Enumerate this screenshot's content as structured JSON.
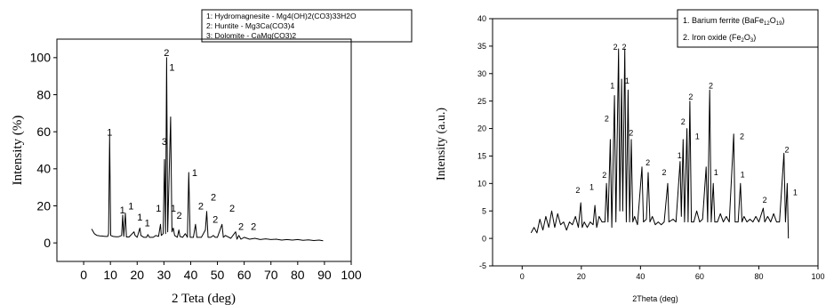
{
  "chart_data": [
    {
      "type": "line",
      "xlabel": "2 Teta (deg)",
      "ylabel": "Intensity (%)",
      "xlim": [
        -10,
        100
      ],
      "ylim": [
        -10,
        110
      ],
      "xticks": [
        0,
        10,
        20,
        30,
        40,
        50,
        60,
        70,
        80,
        90,
        100
      ],
      "yticks": [
        0,
        20,
        40,
        60,
        80,
        100
      ],
      "legend": [
        "1: Hydromagnesite - Mg4(OH)2(CO3)33H2O",
        "2: Huntite - Mg3Ca(CO3)4",
        "3: Dolomite - CaMg(CO3)2"
      ],
      "legend_position": "top-right",
      "grid": false,
      "peak_labels": [
        {
          "x": 9.7,
          "y": 58,
          "label": "1"
        },
        {
          "x": 14.5,
          "y": 16,
          "label": "1"
        },
        {
          "x": 17.7,
          "y": 18,
          "label": "1"
        },
        {
          "x": 21,
          "y": 12,
          "label": "1"
        },
        {
          "x": 23.8,
          "y": 9,
          "label": "1"
        },
        {
          "x": 28,
          "y": 17,
          "label": "1"
        },
        {
          "x": 30.2,
          "y": 53,
          "label": "3"
        },
        {
          "x": 31,
          "y": 101,
          "label": "2"
        },
        {
          "x": 33,
          "y": 93,
          "label": "1"
        },
        {
          "x": 33.5,
          "y": 17,
          "label": "1"
        },
        {
          "x": 35.7,
          "y": 13,
          "label": "2"
        },
        {
          "x": 41.5,
          "y": 36,
          "label": "1"
        },
        {
          "x": 43.8,
          "y": 18,
          "label": "2"
        },
        {
          "x": 48.5,
          "y": 23,
          "label": "2"
        },
        {
          "x": 49.2,
          "y": 11,
          "label": "2"
        },
        {
          "x": 55.5,
          "y": 17,
          "label": "2"
        },
        {
          "x": 58.8,
          "y": 7,
          "label": "2"
        },
        {
          "x": 63.5,
          "y": 7,
          "label": "2"
        }
      ],
      "series": [
        {
          "points": [
            [
              3,
              7.5
            ],
            [
              4,
              5
            ],
            [
              5,
              4
            ],
            [
              6,
              3.8
            ],
            [
              7,
              3.7
            ],
            [
              8,
              3.5
            ],
            [
              9,
              3.5
            ],
            [
              9.3,
              5
            ],
            [
              9.7,
              58
            ],
            [
              10.1,
              4
            ],
            [
              11,
              3.5
            ],
            [
              12,
              3.3
            ],
            [
              13,
              3.3
            ],
            [
              14.2,
              4
            ],
            [
              14.6,
              15
            ],
            [
              15,
              3.5
            ],
            [
              15.6,
              16
            ],
            [
              16,
              3.2
            ],
            [
              17,
              3.2
            ],
            [
              18.8,
              6
            ],
            [
              19.2,
              4
            ],
            [
              20,
              3
            ],
            [
              21,
              8
            ],
            [
              21.4,
              4
            ],
            [
              22.5,
              3
            ],
            [
              23.5,
              3
            ],
            [
              24,
              4.5
            ],
            [
              24.6,
              3
            ],
            [
              26,
              3
            ],
            [
              27,
              4
            ],
            [
              28,
              3.5
            ],
            [
              28.7,
              10
            ],
            [
              29,
              4
            ],
            [
              29.7,
              5
            ],
            [
              30.2,
              45
            ],
            [
              30.6,
              5
            ],
            [
              31,
              100
            ],
            [
              31.4,
              6
            ],
            [
              32.5,
              68
            ],
            [
              33,
              6
            ],
            [
              33.5,
              8
            ],
            [
              34,
              4
            ],
            [
              35,
              3
            ],
            [
              35.6,
              7
            ],
            [
              36,
              3.5
            ],
            [
              37,
              3
            ],
            [
              38,
              5
            ],
            [
              38.8,
              3
            ],
            [
              39.3,
              38
            ],
            [
              39.8,
              3
            ],
            [
              41,
              3
            ],
            [
              41.8,
              10
            ],
            [
              42.3,
              3
            ],
            [
              44,
              3
            ],
            [
              45.5,
              7
            ],
            [
              46,
              17
            ],
            [
              46.5,
              3
            ],
            [
              47.5,
              3
            ],
            [
              48.5,
              4
            ],
            [
              49.2,
              3
            ],
            [
              50,
              3
            ],
            [
              51.7,
              10
            ],
            [
              52.2,
              3
            ],
            [
              53,
              4
            ],
            [
              55,
              2.5
            ],
            [
              56.8,
              6
            ],
            [
              57.3,
              2
            ],
            [
              58,
              4
            ],
            [
              58.8,
              2
            ],
            [
              60,
              3
            ],
            [
              62,
              2
            ],
            [
              64,
              2.5
            ],
            [
              66,
              1.8
            ],
            [
              68,
              2.2
            ],
            [
              70,
              1.8
            ],
            [
              72,
              2
            ],
            [
              74,
              1.5
            ],
            [
              76,
              1.8
            ],
            [
              78,
              1.5
            ],
            [
              80,
              1.8
            ],
            [
              82,
              1.4
            ],
            [
              84,
              1.6
            ],
            [
              86,
              1.3
            ],
            [
              88,
              1.5
            ],
            [
              89.5,
              1.2
            ]
          ]
        }
      ]
    },
    {
      "type": "line",
      "xlabel": "2Theta (deg)",
      "ylabel": "Intensity (a.u.)",
      "xlim": [
        -10,
        100
      ],
      "ylim": [
        -5,
        40
      ],
      "xticks": [
        0,
        20,
        40,
        60,
        80,
        100
      ],
      "yticks": [
        -5,
        0,
        5,
        10,
        15,
        20,
        25,
        30,
        35,
        40
      ],
      "legend": [
        "1. Barium ferrite (BaFe12O19)",
        "2. Iron oxide (Fe2O3)"
      ],
      "legend_position": "top-right",
      "grid": false,
      "peak_labels": [
        {
          "x": 18.8,
          "y": 8.3,
          "label": "2"
        },
        {
          "x": 23.5,
          "y": 8.8,
          "label": "1"
        },
        {
          "x": 27.8,
          "y": 11,
          "label": "2"
        },
        {
          "x": 28.6,
          "y": 21.3,
          "label": "2"
        },
        {
          "x": 30.5,
          "y": 27.3,
          "label": "1"
        },
        {
          "x": 31.5,
          "y": 34.3,
          "label": "2"
        },
        {
          "x": 34.5,
          "y": 34.3,
          "label": "2"
        },
        {
          "x": 35.5,
          "y": 28.2,
          "label": "1"
        },
        {
          "x": 36.8,
          "y": 18.7,
          "label": "2"
        },
        {
          "x": 42.5,
          "y": 13.3,
          "label": "2"
        },
        {
          "x": 48,
          "y": 11.5,
          "label": "2"
        },
        {
          "x": 53.2,
          "y": 14.6,
          "label": "1"
        },
        {
          "x": 54.4,
          "y": 20.7,
          "label": "2"
        },
        {
          "x": 57,
          "y": 25.3,
          "label": "2"
        },
        {
          "x": 59.2,
          "y": 18.1,
          "label": "1"
        },
        {
          "x": 63.8,
          "y": 27.3,
          "label": "2"
        },
        {
          "x": 65.5,
          "y": 11.5,
          "label": "1"
        },
        {
          "x": 74.3,
          "y": 18.1,
          "label": "2"
        },
        {
          "x": 74.5,
          "y": 11.1,
          "label": "1"
        },
        {
          "x": 82,
          "y": 6.5,
          "label": "2"
        },
        {
          "x": 89.5,
          "y": 15.6,
          "label": "2"
        },
        {
          "x": 92.3,
          "y": 7.9,
          "label": "1"
        }
      ],
      "series": [
        {
          "points": [
            [
              3,
              1
            ],
            [
              4,
              2
            ],
            [
              5,
              1
            ],
            [
              6,
              3.5
            ],
            [
              7,
              1.5
            ],
            [
              8,
              4
            ],
            [
              9,
              2
            ],
            [
              10,
              5
            ],
            [
              11,
              2
            ],
            [
              12,
              4.5
            ],
            [
              13,
              2.5
            ],
            [
              14,
              3
            ],
            [
              15,
              1.5
            ],
            [
              16,
              3
            ],
            [
              17,
              2.5
            ],
            [
              18,
              4
            ],
            [
              19,
              2
            ],
            [
              19.8,
              6.5
            ],
            [
              20.3,
              2
            ],
            [
              21,
              3
            ],
            [
              22,
              2
            ],
            [
              23,
              3
            ],
            [
              24,
              2.5
            ],
            [
              24.6,
              6
            ],
            [
              25.2,
              2
            ],
            [
              26,
              4
            ],
            [
              27,
              3
            ],
            [
              28,
              3
            ],
            [
              28.5,
              10
            ],
            [
              29,
              3
            ],
            [
              29.8,
              18
            ],
            [
              30.3,
              2
            ],
            [
              31.2,
              26
            ],
            [
              31.7,
              3
            ],
            [
              32.6,
              34.5
            ],
            [
              33,
              5
            ],
            [
              33.6,
              29
            ],
            [
              34,
              5
            ],
            [
              34.7,
              34.5
            ],
            [
              35.2,
              3
            ],
            [
              35.8,
              27
            ],
            [
              36.3,
              3
            ],
            [
              36.9,
              18
            ],
            [
              37.4,
              3
            ],
            [
              38,
              4
            ],
            [
              39,
              2.5
            ],
            [
              40.5,
              13
            ],
            [
              41,
              3
            ],
            [
              42,
              3.5
            ],
            [
              42.6,
              12
            ],
            [
              43.2,
              3
            ],
            [
              44,
              4
            ],
            [
              45,
              2.5
            ],
            [
              46,
              3
            ],
            [
              47,
              2.5
            ],
            [
              48,
              3
            ],
            [
              49.2,
              10
            ],
            [
              49.6,
              3
            ],
            [
              51,
              3.5
            ],
            [
              52,
              3
            ],
            [
              53.4,
              14
            ],
            [
              53.8,
              4
            ],
            [
              54.4,
              18
            ],
            [
              54.9,
              3
            ],
            [
              55.7,
              20
            ],
            [
              56.1,
              3
            ],
            [
              56.7,
              25
            ],
            [
              57.2,
              3
            ],
            [
              58,
              3
            ],
            [
              59,
              5
            ],
            [
              60,
              3
            ],
            [
              61,
              3.5
            ],
            [
              62.2,
              13
            ],
            [
              62.7,
              3
            ],
            [
              63.4,
              27
            ],
            [
              63.9,
              3
            ],
            [
              64.6,
              10
            ],
            [
              65.1,
              3
            ],
            [
              66,
              3
            ],
            [
              67,
              4.5
            ],
            [
              68,
              3
            ],
            [
              69,
              4
            ],
            [
              70,
              3
            ],
            [
              71.5,
              19
            ],
            [
              72,
              3
            ],
            [
              73,
              3
            ],
            [
              73.8,
              10
            ],
            [
              74.3,
              3
            ],
            [
              75,
              4
            ],
            [
              76,
              3
            ],
            [
              77,
              3.5
            ],
            [
              78,
              3
            ],
            [
              79,
              4
            ],
            [
              80,
              3
            ],
            [
              81.5,
              5.5
            ],
            [
              82,
              3
            ],
            [
              83,
              4
            ],
            [
              84,
              3
            ],
            [
              85,
              4.5
            ],
            [
              86,
              3
            ],
            [
              87,
              3
            ],
            [
              88.5,
              15.5
            ],
            [
              89,
              3
            ],
            [
              89.6,
              10
            ],
            [
              90,
              0
            ]
          ]
        }
      ]
    }
  ]
}
